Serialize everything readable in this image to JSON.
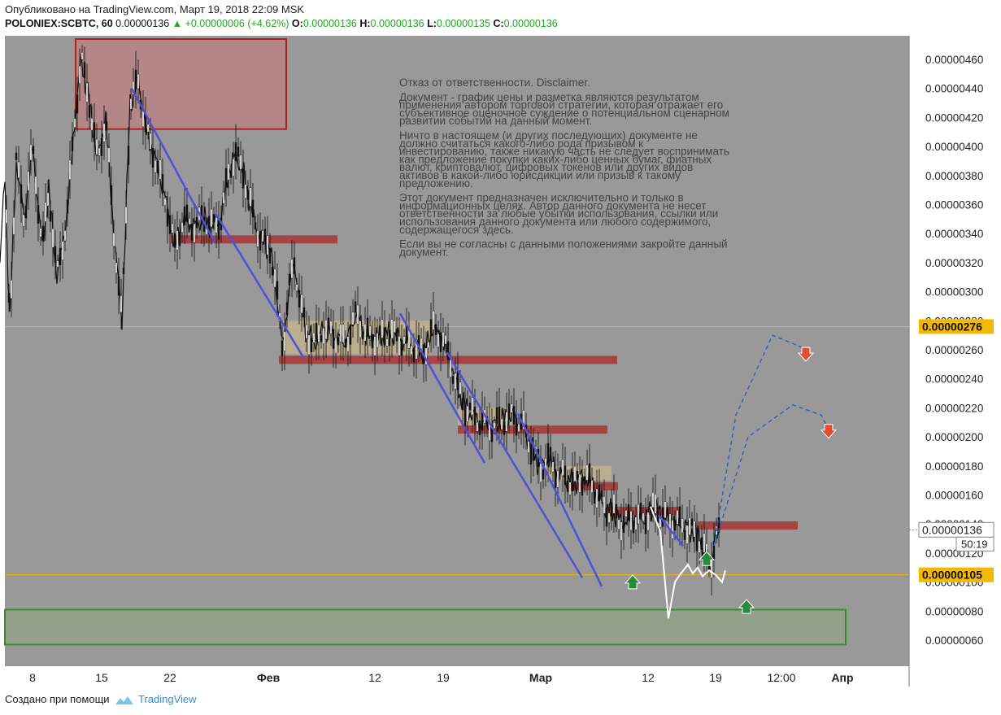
{
  "header": {
    "published": "Опубликовано на TradingView.com, Март 19, 2018 22:09 MSK",
    "symbol": "POLONIEX:SCBTC, 60",
    "price": "0.00000136",
    "change": "+0.00000006 (+4.62%)",
    "o_label": "O:",
    "o_value": "0.00000136",
    "h_label": "H:",
    "h_value": "0.00000136",
    "l_label": "L:",
    "l_value": "0.00000135",
    "c_label": "C:",
    "c_value": "0.00000136"
  },
  "disclaimer": [
    "Отказ от ответственности. Disclaimer.",
    "",
    "Документ - график цены и разметка являются результатом",
    "применения автором торговой стратегии, которая отражает его",
    "субъективное оценочное суждение о потенциальном сценарном",
    "развитии событий на данный момент.",
    "",
    "Ничто в настоящем (и других последующих) документе не",
    "должно считаться какого-либо рода призывом к",
    "инвестированию, также никакую часть не следует воспринимать",
    "как предложение покупки каких-либо ценных бумаг, фиатных",
    "валют, криптовалют, цифровых токенов или других видов",
    "активов в какой-либо юрисдикции или призыв к такому",
    "предложению.",
    "",
    "Этот документ предназначен исключительно и только в",
    "информационных целях. Автор данного документа не несет",
    "ответственности за любые убытки использования, ссылки или",
    "использования данного документа или любого содержимого,",
    "содержащегося здесь.",
    "",
    "Если вы не согласны с данными положениями закройте данный",
    "документ."
  ],
  "chart_data": {
    "type": "candlestick",
    "x_ticks": [
      "8",
      "15",
      "22",
      "Фев",
      "12",
      "19",
      "Мар",
      "12",
      "19",
      "12:00",
      "Апр"
    ],
    "y_ticks": [
      "0.00000460",
      "0.00000440",
      "0.00000420",
      "0.00000400",
      "0.00000380",
      "0.00000360",
      "0.00000340",
      "0.00000320",
      "0.00000300",
      "0.00000280",
      "0.00000260",
      "0.00000240",
      "0.00000220",
      "0.00000200",
      "0.00000180",
      "0.00000160",
      "0.00000140",
      "0.00000120",
      "0.00000100",
      "0.00000080",
      "0.00000060"
    ],
    "y_tick_values": [
      460,
      440,
      420,
      400,
      380,
      360,
      340,
      320,
      300,
      280,
      260,
      240,
      220,
      200,
      180,
      160,
      140,
      120,
      100,
      80,
      60
    ],
    "y_unit_scale": "1e-8",
    "ylim": [
      53,
      467
    ],
    "price_path": [
      [
        0,
        320
      ],
      [
        6,
        380
      ],
      [
        12,
        280
      ],
      [
        20,
        390
      ],
      [
        30,
        350
      ],
      [
        40,
        400
      ],
      [
        52,
        330
      ],
      [
        60,
        370
      ],
      [
        70,
        310
      ],
      [
        82,
        350
      ],
      [
        92,
        420
      ],
      [
        100,
        460
      ],
      [
        110,
        430
      ],
      [
        120,
        390
      ],
      [
        130,
        420
      ],
      [
        140,
        340
      ],
      [
        150,
        280
      ],
      [
        160,
        430
      ],
      [
        170,
        445
      ],
      [
        180,
        410
      ],
      [
        192,
        390
      ],
      [
        205,
        360
      ],
      [
        215,
        330
      ],
      [
        225,
        350
      ],
      [
        238,
        345
      ],
      [
        250,
        350
      ],
      [
        262,
        345
      ],
      [
        272,
        350
      ],
      [
        280,
        380
      ],
      [
        290,
        395
      ],
      [
        300,
        380
      ],
      [
        312,
        350
      ],
      [
        322,
        335
      ],
      [
        332,
        330
      ],
      [
        340,
        300
      ],
      [
        348,
        260
      ],
      [
        355,
        300
      ],
      [
        362,
        320
      ],
      [
        370,
        290
      ],
      [
        378,
        270
      ],
      [
        388,
        265
      ],
      [
        398,
        275
      ],
      [
        410,
        270
      ],
      [
        425,
        265
      ],
      [
        438,
        285
      ],
      [
        450,
        270
      ],
      [
        465,
        268
      ],
      [
        480,
        272
      ],
      [
        495,
        266
      ],
      [
        510,
        262
      ],
      [
        522,
        258
      ],
      [
        532,
        275
      ],
      [
        542,
        270
      ],
      [
        552,
        255
      ],
      [
        562,
        235
      ],
      [
        572,
        220
      ],
      [
        582,
        215
      ],
      [
        595,
        208
      ],
      [
        608,
        208
      ],
      [
        620,
        212
      ],
      [
        632,
        215
      ],
      [
        645,
        205
      ],
      [
        655,
        190
      ],
      [
        665,
        178
      ],
      [
        675,
        185
      ],
      [
        685,
        175
      ],
      [
        695,
        172
      ],
      [
        705,
        168
      ],
      [
        715,
        172
      ],
      [
        725,
        170
      ],
      [
        735,
        160
      ],
      [
        745,
        150
      ],
      [
        755,
        148
      ],
      [
        765,
        140
      ],
      [
        775,
        144
      ],
      [
        785,
        143
      ],
      [
        795,
        145
      ],
      [
        805,
        152
      ],
      [
        815,
        145
      ],
      [
        825,
        143
      ],
      [
        835,
        140
      ],
      [
        845,
        137
      ],
      [
        855,
        134
      ],
      [
        862,
        128
      ],
      [
        868,
        118
      ],
      [
        874,
        112
      ],
      [
        880,
        130
      ],
      [
        886,
        136
      ]
    ],
    "last_price_label": "0.00000136",
    "countdown": "50:19",
    "horizontal_levels": [
      {
        "value": 276,
        "label": "0.00000276",
        "color": "#f0b800"
      },
      {
        "value": 105,
        "label": "0.00000105",
        "color": "#f0b800"
      }
    ],
    "resistance_zones": [
      {
        "x1": 210,
        "x2": 415,
        "value": 336
      },
      {
        "x1": 343,
        "x2": 759,
        "value": 253
      },
      {
        "x1": 563,
        "x2": 747,
        "value": 205
      },
      {
        "x1": 700,
        "x2": 760,
        "value": 166
      },
      {
        "x1": 745,
        "x2": 837,
        "value": 149
      },
      {
        "x1": 858,
        "x2": 981,
        "value": 139
      }
    ],
    "consolidation_zones": [
      {
        "x1": 348,
        "x2": 530,
        "top": 280,
        "bottom": 257
      },
      {
        "x1": 563,
        "x2": 630,
        "top": 220,
        "bottom": 208
      },
      {
        "x1": 672,
        "x2": 752,
        "top": 180,
        "bottom": 170
      }
    ],
    "supply_zone": {
      "x1": 93,
      "x2": 352,
      "top": 474,
      "bottom": 412
    },
    "demand_zone": {
      "x1": 6,
      "x2": 1040,
      "top": 81,
      "bottom": 57
    },
    "trend_lines": [
      [
        162,
        440,
        264,
        334
      ],
      [
        265,
        354,
        374,
        254
      ],
      [
        492,
        285,
        596,
        182
      ],
      [
        550,
        258,
        716,
        103
      ],
      [
        637,
        216,
        740,
        97
      ],
      [
        810,
        146,
        840,
        125
      ]
    ],
    "projection_paths": [
      [
        [
          878,
          125
        ],
        [
          905,
          215
        ],
        [
          950,
          270
        ],
        [
          985,
          262
        ],
        [
          992,
          255
        ]
      ],
      [
        [
          878,
          125
        ],
        [
          920,
          200
        ],
        [
          975,
          222
        ],
        [
          1010,
          215
        ],
        [
          1019,
          205
        ]
      ]
    ],
    "arrows": [
      {
        "dir": "down",
        "x": 991,
        "value": 256,
        "color": "#e05030"
      },
      {
        "dir": "down",
        "x": 1019,
        "value": 203,
        "color": "#e05030"
      },
      {
        "dir": "up",
        "x": 778,
        "value": 101,
        "color": "#2a8a3a"
      },
      {
        "dir": "up",
        "x": 869,
        "value": 117,
        "color": "#2a8a3a"
      },
      {
        "dir": "up",
        "x": 918,
        "value": 84,
        "color": "#2a8a3a"
      }
    ]
  },
  "footer": {
    "created_with": "Создано при помощи",
    "brand": "TradingView"
  }
}
